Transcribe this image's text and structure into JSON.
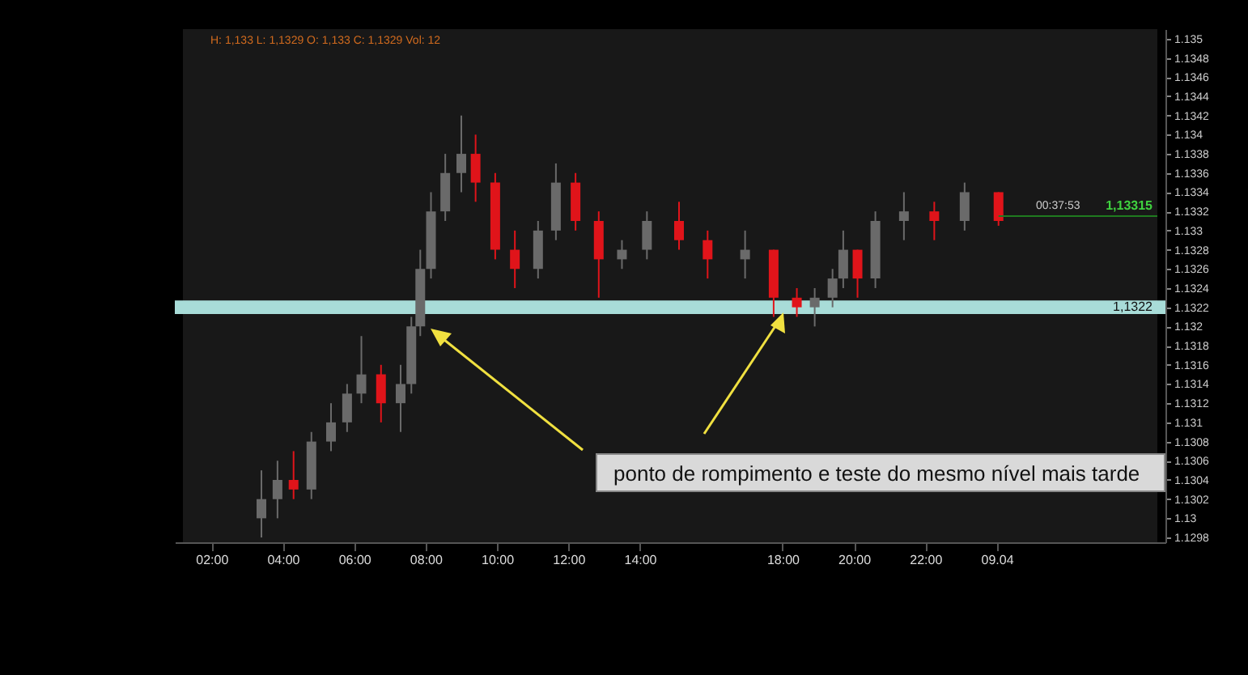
{
  "chart_data": {
    "type": "candlestick",
    "x": [
      "--04-08T03:24",
      "--04-08T03:51",
      "--04-08T04:18",
      "--04-08T04:48",
      "--04-08T05:21",
      "--04-08T05:48",
      "--04-08T06:12",
      "--04-08T06:45",
      "--04-08T07:18",
      "--04-08T07:36",
      "--04-08T07:51",
      "--04-08T08:09",
      "--04-08T08:33",
      "--04-08T09:00",
      "--04-08T09:24",
      "--04-08T09:57",
      "--04-08T10:30",
      "--04-08T11:09",
      "--04-08T11:39",
      "--04-08T12:12",
      "--04-08T12:51",
      "--04-08T13:30",
      "--04-08T14:12",
      "--04-08T15:06",
      "--04-08T15:54",
      "--04-08T16:57",
      "--04-08T17:45",
      "--04-08T18:24",
      "--04-08T18:54",
      "--04-08T19:24",
      "--04-08T19:42",
      "--04-08T20:06",
      "--04-08T20:36",
      "--04-08T21:24",
      "--04-08T22:15",
      "--04-08T23:06",
      "--04-09T00:03"
    ],
    "ohlc": [
      [
        1.13,
        1.1305,
        1.1298,
        1.1302
      ],
      [
        1.1302,
        1.1306,
        1.13,
        1.1304
      ],
      [
        1.1304,
        1.1307,
        1.1302,
        1.1303
      ],
      [
        1.1303,
        1.1309,
        1.1302,
        1.1308
      ],
      [
        1.1308,
        1.1312,
        1.1307,
        1.131
      ],
      [
        1.131,
        1.1314,
        1.1309,
        1.1313
      ],
      [
        1.1313,
        1.1319,
        1.1312,
        1.1315
      ],
      [
        1.1315,
        1.1316,
        1.131,
        1.1312
      ],
      [
        1.1312,
        1.1316,
        1.1309,
        1.1314
      ],
      [
        1.1314,
        1.1321,
        1.1313,
        1.132
      ],
      [
        1.132,
        1.1328,
        1.1319,
        1.1326
      ],
      [
        1.1326,
        1.1334,
        1.1325,
        1.1332
      ],
      [
        1.1332,
        1.1338,
        1.1331,
        1.1336
      ],
      [
        1.1336,
        1.1342,
        1.1334,
        1.1338
      ],
      [
        1.1338,
        1.134,
        1.1333,
        1.1335
      ],
      [
        1.1335,
        1.1336,
        1.1327,
        1.1328
      ],
      [
        1.1328,
        1.133,
        1.1324,
        1.1326
      ],
      [
        1.1326,
        1.1331,
        1.1325,
        1.133
      ],
      [
        1.133,
        1.1337,
        1.1329,
        1.1335
      ],
      [
        1.1335,
        1.1336,
        1.133,
        1.1331
      ],
      [
        1.1331,
        1.1332,
        1.1323,
        1.1327
      ],
      [
        1.1327,
        1.1329,
        1.1326,
        1.1328
      ],
      [
        1.1328,
        1.1332,
        1.1327,
        1.1331
      ],
      [
        1.1331,
        1.1333,
        1.1328,
        1.1329
      ],
      [
        1.1329,
        1.133,
        1.1325,
        1.1327
      ],
      [
        1.1327,
        1.133,
        1.1325,
        1.1328
      ],
      [
        1.1328,
        1.1328,
        1.1321,
        1.1323
      ],
      [
        1.1323,
        1.1324,
        1.1321,
        1.1322
      ],
      [
        1.1322,
        1.1324,
        1.132,
        1.1323
      ],
      [
        1.1323,
        1.1326,
        1.1322,
        1.1325
      ],
      [
        1.1325,
        1.133,
        1.1324,
        1.1328
      ],
      [
        1.1328,
        1.1328,
        1.1323,
        1.1325
      ],
      [
        1.1325,
        1.1332,
        1.1324,
        1.1331
      ],
      [
        1.1331,
        1.1334,
        1.1329,
        1.1332
      ],
      [
        1.1332,
        1.1333,
        1.1329,
        1.1331
      ],
      [
        1.1331,
        1.1335,
        1.133,
        1.1334
      ],
      [
        1.1334,
        1.1334,
        1.13305,
        1.1331
      ]
    ],
    "xlim": [
      "--04-08T01:12",
      "--04-09T04:30"
    ],
    "xticks": [
      {
        "value": "--04-08T02:00",
        "label": "02:00"
      },
      {
        "value": "--04-08T04:00",
        "label": "04:00"
      },
      {
        "value": "--04-08T06:00",
        "label": "06:00"
      },
      {
        "value": "--04-08T08:00",
        "label": "08:00"
      },
      {
        "value": "--04-08T10:00",
        "label": "10:00"
      },
      {
        "value": "--04-08T12:00",
        "label": "12:00"
      },
      {
        "value": "--04-08T14:00",
        "label": "14:00"
      },
      {
        "value": "--04-08T18:00",
        "label": "18:00"
      },
      {
        "value": "--04-08T20:00",
        "label": "20:00"
      },
      {
        "value": "--04-08T22:00",
        "label": "22:00"
      },
      {
        "value": "--04-09T00:00",
        "label": "09.04"
      }
    ],
    "ylim": [
      1.12975,
      1.1351
    ],
    "yticks": [
      1.1298,
      1.13,
      1.1302,
      1.1304,
      1.1306,
      1.1308,
      1.131,
      1.1312,
      1.1314,
      1.1316,
      1.1318,
      1.132,
      1.1322,
      1.1324,
      1.1326,
      1.1328,
      1.133,
      1.1332,
      1.1334,
      1.1336,
      1.1338,
      1.134,
      1.1342,
      1.1344,
      1.1346,
      1.1348,
      1.135
    ],
    "ref_lines": [
      {
        "axis": "y",
        "value": 1.13315,
        "label": "1,13315",
        "color": "#1f7a1f"
      }
    ],
    "bands": [
      {
        "axis": "y",
        "from": 1.13213,
        "to": 1.13227,
        "label": "1,1322",
        "color": "#a8dcd8"
      }
    ],
    "annotations": [
      "ponto de rompimento e teste do mesmo nível mais tarde",
      "H: 1,133 L: 1,1329 O: 1,133 C: 1,1329   Vol: 12",
      "00:37:53"
    ]
  }
}
